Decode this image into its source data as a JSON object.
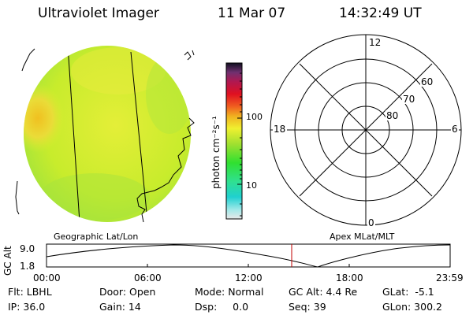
{
  "header": {
    "instrument": "Ultraviolet Imager",
    "date": "11 Mar 07",
    "time": "14:32:49 UT"
  },
  "colorbar": {
    "label": "photon cm⁻²s⁻¹",
    "tick_labels": [
      "100",
      "10"
    ]
  },
  "polar_plot": {
    "mlt_labels": [
      "12",
      "18",
      "6",
      "0"
    ],
    "mlat_labels": [
      "60",
      "70",
      "80"
    ]
  },
  "panel_labels": {
    "left": "Geographic Lat/Lon",
    "right": "Apex MLat/MLT"
  },
  "altitude_plot": {
    "axis_label": "GC Alt",
    "y_ticks": [
      "9.0",
      "1.8"
    ],
    "x_ticks": [
      "00:00",
      "06:00",
      "12:00",
      "18:00",
      "23:59"
    ],
    "current_time_marker": "14:32"
  },
  "status": {
    "filter": "Flt: LBHL",
    "door": "Door: Open",
    "mode": "Mode: Normal",
    "gc_alt": "GC Alt: 4.4 Re",
    "glat": "GLat:  -5.1",
    "ip": "IP: 36.0",
    "gain": "Gain: 14",
    "dsp": "Dsp:     0.0",
    "seq": "Seq: 39",
    "glon": "GLon: 300.2"
  },
  "colors": {
    "disk_base": "#c8ec2c",
    "disk_bright": "#ecea3c",
    "marker": "#c00000"
  }
}
